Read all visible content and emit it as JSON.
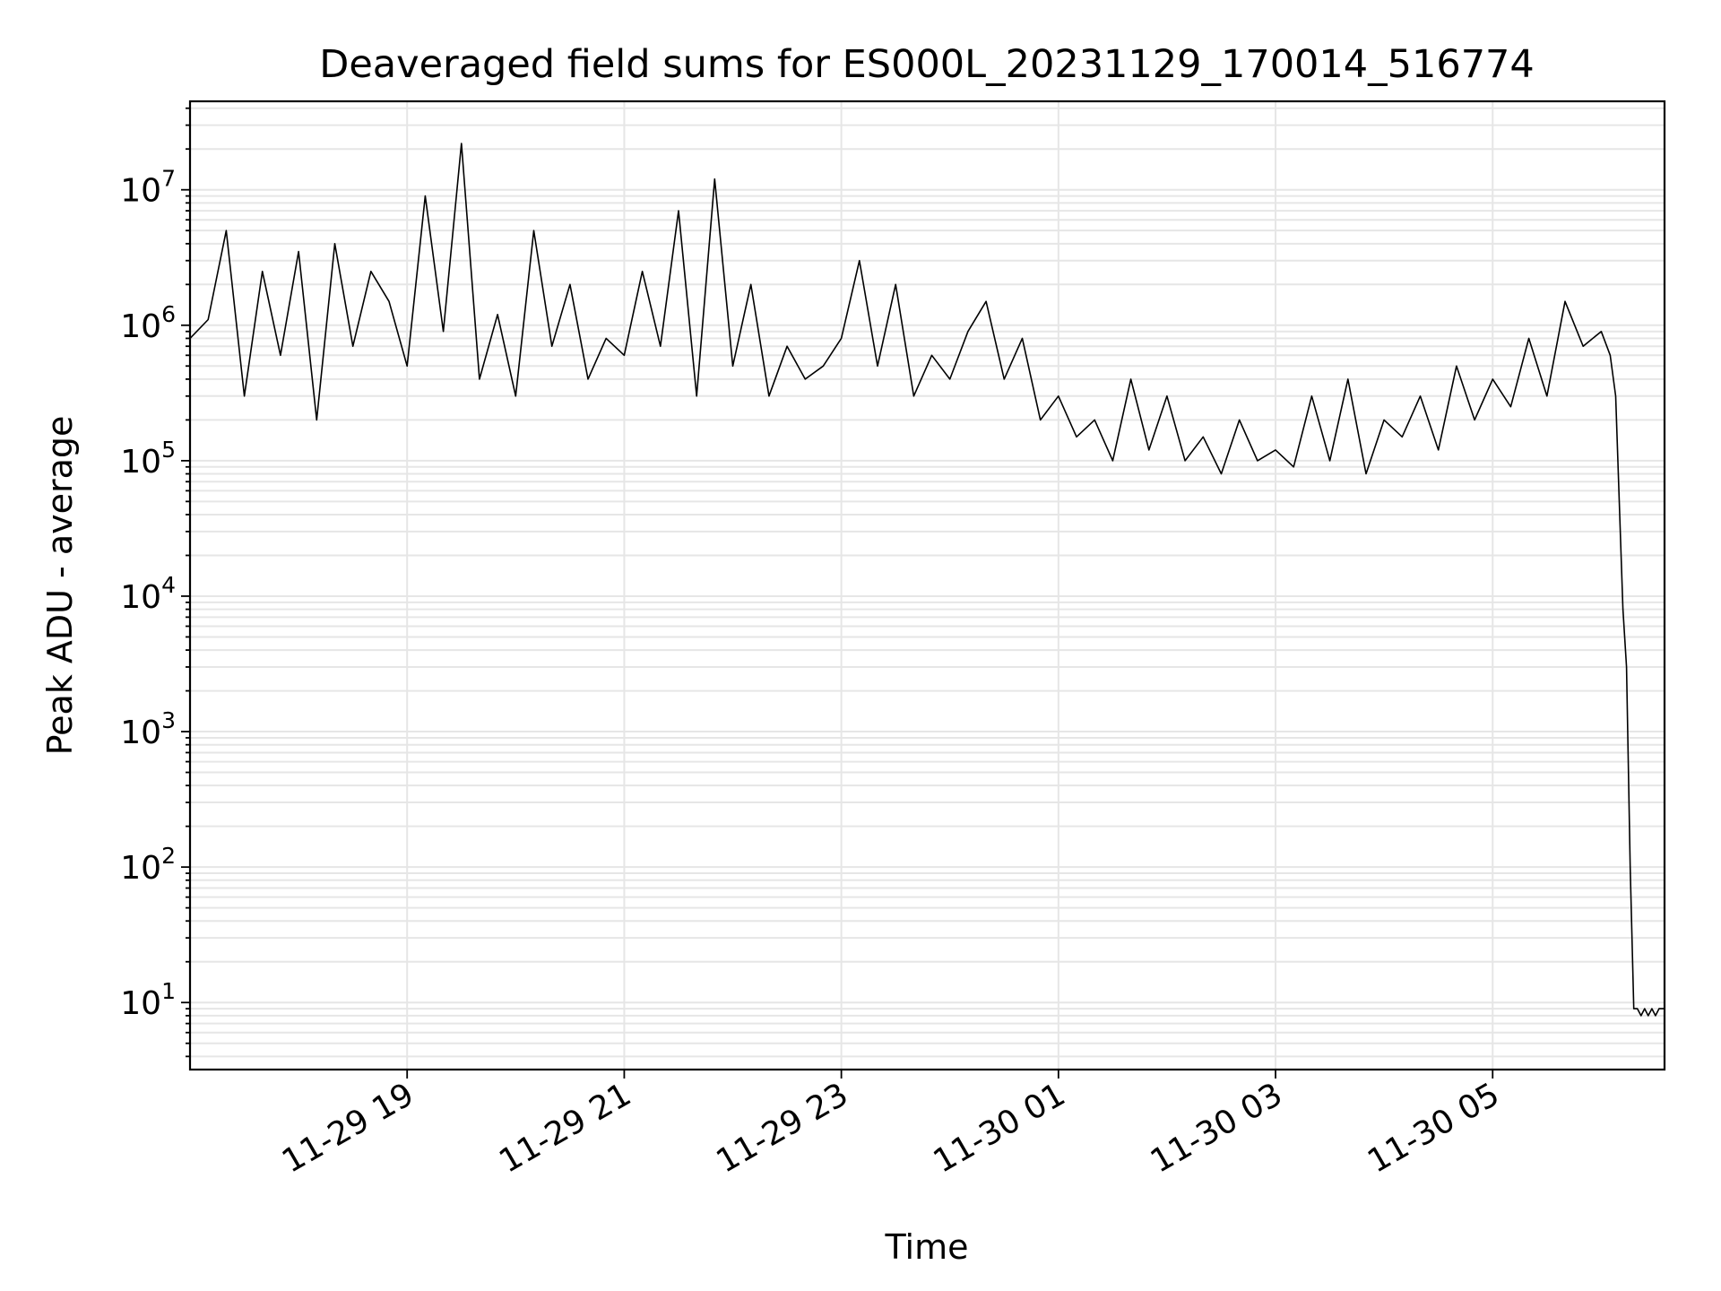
{
  "chart_data": {
    "type": "line",
    "title": "Deaveraged field sums for ES000L_20231129_170014_516774",
    "xlabel": "Time",
    "ylabel": "Peak ADU - average",
    "yscale": "log",
    "xlim": [
      "2023-11-29 17:00",
      "2023-11-30 06:35"
    ],
    "ylim": [
      3.2,
      45000000
    ],
    "grid": true,
    "line_color": "#000000",
    "grid_color": "#e6e6e6",
    "x_ticks": [
      {
        "value": "2023-11-29 19:00",
        "label": "11-29 19"
      },
      {
        "value": "2023-11-29 21:00",
        "label": "11-29 21"
      },
      {
        "value": "2023-11-29 23:00",
        "label": "11-29 23"
      },
      {
        "value": "2023-11-30 01:00",
        "label": "11-30 01"
      },
      {
        "value": "2023-11-30 03:00",
        "label": "11-30 03"
      },
      {
        "value": "2023-11-30 05:00",
        "label": "11-30 05"
      }
    ],
    "y_ticks": [
      {
        "value": 10,
        "base": "10",
        "exp": "1"
      },
      {
        "value": 100,
        "base": "10",
        "exp": "2"
      },
      {
        "value": 1000,
        "base": "10",
        "exp": "3"
      },
      {
        "value": 10000,
        "base": "10",
        "exp": "4"
      },
      {
        "value": 100000,
        "base": "10",
        "exp": "5"
      },
      {
        "value": 1000000,
        "base": "10",
        "exp": "6"
      },
      {
        "value": 10000000,
        "base": "10",
        "exp": "7"
      }
    ],
    "series": [
      {
        "x": [
          "2023-11-29 17:00",
          "2023-11-29 17:10",
          "2023-11-29 17:20",
          "2023-11-29 17:30",
          "2023-11-29 17:40",
          "2023-11-29 17:50",
          "2023-11-29 18:00",
          "2023-11-29 18:10",
          "2023-11-29 18:20",
          "2023-11-29 18:30",
          "2023-11-29 18:40",
          "2023-11-29 18:50",
          "2023-11-29 19:00",
          "2023-11-29 19:10",
          "2023-11-29 19:20",
          "2023-11-29 19:30",
          "2023-11-29 19:40",
          "2023-11-29 19:50",
          "2023-11-29 20:00",
          "2023-11-29 20:10",
          "2023-11-29 20:20",
          "2023-11-29 20:30",
          "2023-11-29 20:40",
          "2023-11-29 20:50",
          "2023-11-29 21:00",
          "2023-11-29 21:10",
          "2023-11-29 21:20",
          "2023-11-29 21:30",
          "2023-11-29 21:40",
          "2023-11-29 21:50",
          "2023-11-29 22:00",
          "2023-11-29 22:10",
          "2023-11-29 22:20",
          "2023-11-29 22:30",
          "2023-11-29 22:40",
          "2023-11-29 22:50",
          "2023-11-29 23:00",
          "2023-11-29 23:10",
          "2023-11-29 23:20",
          "2023-11-29 23:30",
          "2023-11-29 23:40",
          "2023-11-29 23:50",
          "2023-11-30 00:00",
          "2023-11-30 00:10",
          "2023-11-30 00:20",
          "2023-11-30 00:30",
          "2023-11-30 00:40",
          "2023-11-30 00:50",
          "2023-11-30 01:00",
          "2023-11-30 01:10",
          "2023-11-30 01:20",
          "2023-11-30 01:30",
          "2023-11-30 01:40",
          "2023-11-30 01:50",
          "2023-11-30 02:00",
          "2023-11-30 02:10",
          "2023-11-30 02:20",
          "2023-11-30 02:30",
          "2023-11-30 02:40",
          "2023-11-30 02:50",
          "2023-11-30 03:00",
          "2023-11-30 03:10",
          "2023-11-30 03:20",
          "2023-11-30 03:30",
          "2023-11-30 03:40",
          "2023-11-30 03:50",
          "2023-11-30 04:00",
          "2023-11-30 04:10",
          "2023-11-30 04:20",
          "2023-11-30 04:30",
          "2023-11-30 04:40",
          "2023-11-30 04:50",
          "2023-11-30 05:00",
          "2023-11-30 05:10",
          "2023-11-30 05:20",
          "2023-11-30 05:30",
          "2023-11-30 05:40",
          "2023-11-30 05:50",
          "2023-11-30 06:00",
          "2023-11-30 06:05",
          "2023-11-30 06:08",
          "2023-11-30 06:10",
          "2023-11-30 06:12",
          "2023-11-30 06:14",
          "2023-11-30 06:16",
          "2023-11-30 06:18",
          "2023-11-30 06:20",
          "2023-11-30 06:22",
          "2023-11-30 06:24",
          "2023-11-30 06:26",
          "2023-11-30 06:28",
          "2023-11-30 06:30",
          "2023-11-30 06:32",
          "2023-11-30 06:35"
        ],
        "y": [
          800000,
          1100000,
          5000000,
          300000,
          2500000,
          600000,
          3500000,
          200000,
          4000000,
          700000,
          2500000,
          1500000,
          500000,
          9000000,
          900000,
          22000000,
          400000,
          1200000,
          300000,
          5000000,
          700000,
          2000000,
          400000,
          800000,
          600000,
          2500000,
          700000,
          7000000,
          300000,
          12000000,
          500000,
          2000000,
          300000,
          700000,
          400000,
          500000,
          800000,
          3000000,
          500000,
          2000000,
          300000,
          600000,
          400000,
          900000,
          1500000,
          400000,
          800000,
          200000,
          300000,
          150000,
          200000,
          100000,
          400000,
          120000,
          300000,
          100000,
          150000,
          80000,
          200000,
          100000,
          120000,
          90000,
          300000,
          100000,
          400000,
          80000,
          200000,
          150000,
          300000,
          120000,
          500000,
          200000,
          400000,
          250000,
          800000,
          300000,
          1500000,
          700000,
          900000,
          600000,
          300000,
          50000,
          8000,
          3000,
          100,
          9,
          9,
          8,
          9,
          8,
          9,
          8,
          9,
          9
        ]
      }
    ]
  }
}
